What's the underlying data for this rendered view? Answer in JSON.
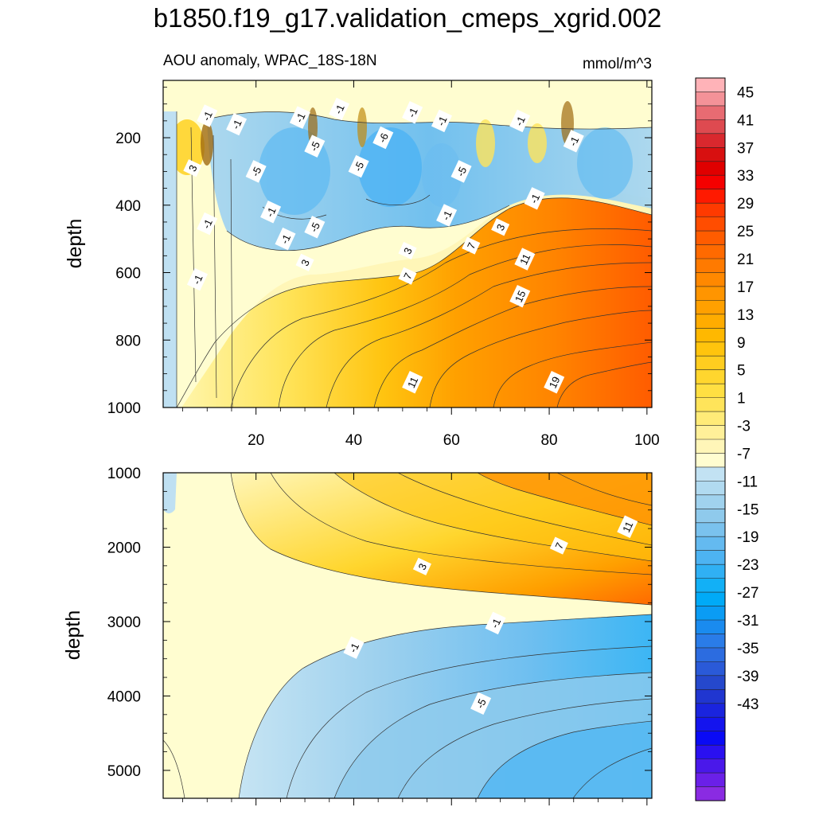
{
  "chart_data": {
    "type": "heatmap",
    "title": "b1850.f19_g17.validation_cmeps_xgrid.002",
    "subtitle_left": "AOU anomaly, WPAC_18S-18N",
    "subtitle_right": "mmol/m^3",
    "panels": [
      {
        "id": "upper",
        "ylabel": "depth",
        "xlim": [
          1,
          101
        ],
        "ylim": [
          1000,
          30
        ],
        "ylim_note": "depth increases downward",
        "x_ticks": [
          "20",
          "40",
          "60",
          "80",
          "100"
        ],
        "y_ticks": [
          "200",
          "400",
          "600",
          "800",
          "1000"
        ],
        "x_tick_values": [
          20,
          40,
          60,
          80,
          100
        ],
        "y_tick_values": [
          200,
          400,
          600,
          800,
          1000
        ],
        "contour_labels": [
          {
            "text": "-1",
            "x": 10,
            "y": 135
          },
          {
            "text": "-1",
            "x": 16,
            "y": 160
          },
          {
            "text": "-1",
            "x": 29,
            "y": 140
          },
          {
            "text": "-1",
            "x": 37,
            "y": 115
          },
          {
            "text": "-1",
            "x": 52,
            "y": 125
          },
          {
            "text": "-1",
            "x": 58,
            "y": 150
          },
          {
            "text": "-1",
            "x": 74,
            "y": 150
          },
          {
            "text": "-1",
            "x": 85,
            "y": 210
          },
          {
            "text": "3",
            "x": 7,
            "y": 290
          },
          {
            "text": "-5",
            "x": 20,
            "y": 300
          },
          {
            "text": "-5",
            "x": 32,
            "y": 225
          },
          {
            "text": "-6",
            "x": 46,
            "y": 200
          },
          {
            "text": "-5",
            "x": 41,
            "y": 285
          },
          {
            "text": "-5",
            "x": 62,
            "y": 300
          },
          {
            "text": "-1",
            "x": 10,
            "y": 455
          },
          {
            "text": "-1",
            "x": 23,
            "y": 420
          },
          {
            "text": "-5",
            "x": 32,
            "y": 465
          },
          {
            "text": "-1",
            "x": 26,
            "y": 500
          },
          {
            "text": "-1",
            "x": 8,
            "y": 620
          },
          {
            "text": "3",
            "x": 30,
            "y": 570
          },
          {
            "text": "3",
            "x": 51,
            "y": 535
          },
          {
            "text": "7",
            "x": 51,
            "y": 610
          },
          {
            "text": "-1",
            "x": 59,
            "y": 430
          },
          {
            "text": "7",
            "x": 64,
            "y": 520
          },
          {
            "text": "-1",
            "x": 77,
            "y": 380
          },
          {
            "text": "3",
            "x": 70,
            "y": 465
          },
          {
            "text": "11",
            "x": 75,
            "y": 560
          },
          {
            "text": "15",
            "x": 74,
            "y": 670
          },
          {
            "text": "11",
            "x": 52,
            "y": 925
          },
          {
            "text": "19",
            "x": 81,
            "y": 925
          }
        ]
      },
      {
        "id": "lower",
        "ylabel": "depth",
        "xlim": [
          1,
          101
        ],
        "ylim": [
          5375,
          1000
        ],
        "ylim_note": "depth increases downward",
        "y_ticks": [
          "1000",
          "2000",
          "3000",
          "4000",
          "5000"
        ],
        "y_tick_values": [
          1000,
          2000,
          3000,
          4000,
          5000
        ],
        "contour_labels": [
          {
            "text": "11",
            "x": 96,
            "y": 1725
          },
          {
            "text": "7",
            "x": 82,
            "y": 1980
          },
          {
            "text": "3",
            "x": 54,
            "y": 2260
          },
          {
            "text": "-1",
            "x": 69,
            "y": 3020
          },
          {
            "text": "-1",
            "x": 40,
            "y": 3350
          },
          {
            "text": "-5",
            "x": 66,
            "y": 4100
          }
        ]
      }
    ],
    "colorbar": {
      "levels_labeled": [
        "45",
        "41",
        "37",
        "33",
        "29",
        "25",
        "21",
        "17",
        "13",
        "9",
        "5",
        "1",
        "-3",
        "-7",
        "-11",
        "-15",
        "-19",
        "-23",
        "-27",
        "-31",
        "-35",
        "-39",
        "-43"
      ],
      "colors_top_to_bottom": [
        "#ffb3b8",
        "#f49298",
        "#e86b72",
        "#de4a50",
        "#d9282e",
        "#d81010",
        "#e00000",
        "#f50000",
        "#ff1a00",
        "#ff3a00",
        "#ff4d00",
        "#ff5c00",
        "#ff6a00",
        "#ff7a00",
        "#ff8800",
        "#ff9500",
        "#ffa000",
        "#ffac00",
        "#ffb800",
        "#ffc40d",
        "#ffcd1f",
        "#ffd62e",
        "#ffdf42",
        "#ffe45a",
        "#ffeb78",
        "#fff099",
        "#fff6b8",
        "#fffdd0",
        "#c2e2f3",
        "#b1daf0",
        "#a0d2ee",
        "#8fcaec",
        "#7ac2ee",
        "#64baf0",
        "#4db3f2",
        "#30b0f4",
        "#12b0f6",
        "#00aaf7",
        "#0a9cf4",
        "#1a8bef",
        "#2a7ce8",
        "#2c6ce0",
        "#2a5ad8",
        "#2548cc",
        "#2036d0",
        "#1a24de",
        "#1414ee",
        "#0a0af5",
        "#2a10f0",
        "#4a18ea",
        "#6a20e8",
        "#8a2be2"
      ]
    }
  }
}
